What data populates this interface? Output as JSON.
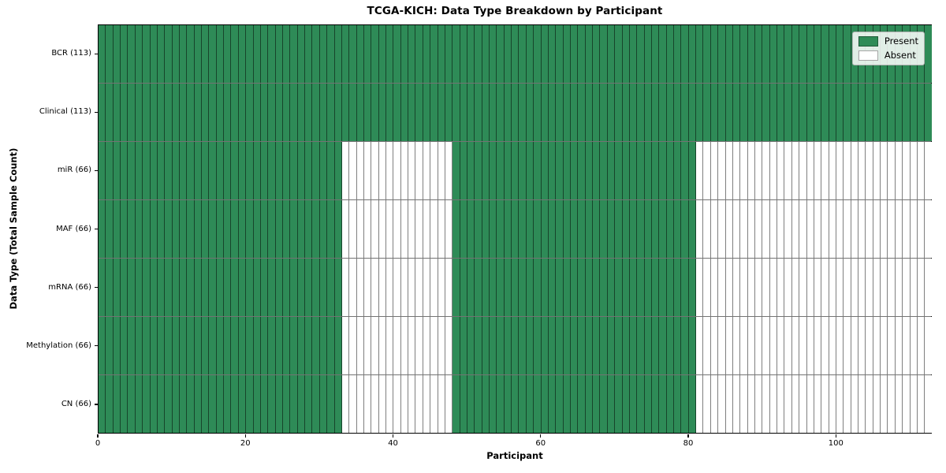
{
  "chart_data": {
    "type": "heatmap",
    "title": "TCGA-KICH: Data Type Breakdown by Participant",
    "xlabel": "Participant",
    "ylabel": "Data Type (Total Sample Count)",
    "n_participants": 113,
    "x_axis": {
      "ticks": [
        0,
        20,
        40,
        60,
        80,
        100
      ],
      "range": [
        0,
        113
      ]
    },
    "rows": [
      {
        "label": "BCR (113)",
        "present_count": 113,
        "present_ranges": [
          [
            0,
            113
          ]
        ]
      },
      {
        "label": "Clinical (113)",
        "present_count": 113,
        "present_ranges": [
          [
            0,
            113
          ]
        ]
      },
      {
        "label": "miR (66)",
        "present_count": 66,
        "present_ranges": [
          [
            0,
            33
          ],
          [
            48,
            81
          ]
        ]
      },
      {
        "label": "MAF (66)",
        "present_count": 66,
        "present_ranges": [
          [
            0,
            33
          ],
          [
            48,
            81
          ]
        ]
      },
      {
        "label": "mRNA (66)",
        "present_count": 66,
        "present_ranges": [
          [
            0,
            33
          ],
          [
            48,
            81
          ]
        ]
      },
      {
        "label": "Methylation (66)",
        "present_count": 66,
        "present_ranges": [
          [
            0,
            33
          ],
          [
            48,
            81
          ]
        ]
      },
      {
        "label": "CN (66)",
        "present_count": 66,
        "present_ranges": [
          [
            0,
            33
          ],
          [
            48,
            81
          ]
        ]
      }
    ],
    "legend": {
      "position": "upper right",
      "entries": [
        {
          "label": "Present",
          "color": "#2e8b57"
        },
        {
          "label": "Absent",
          "color": "#ffffff"
        }
      ]
    },
    "colors": {
      "present": "#2e8b57",
      "absent": "#ffffff",
      "cell_edge": "rgba(0,0,0,0.5)",
      "row_edge": "rgba(0,0,0,0.55)",
      "spine": "#000000"
    }
  }
}
